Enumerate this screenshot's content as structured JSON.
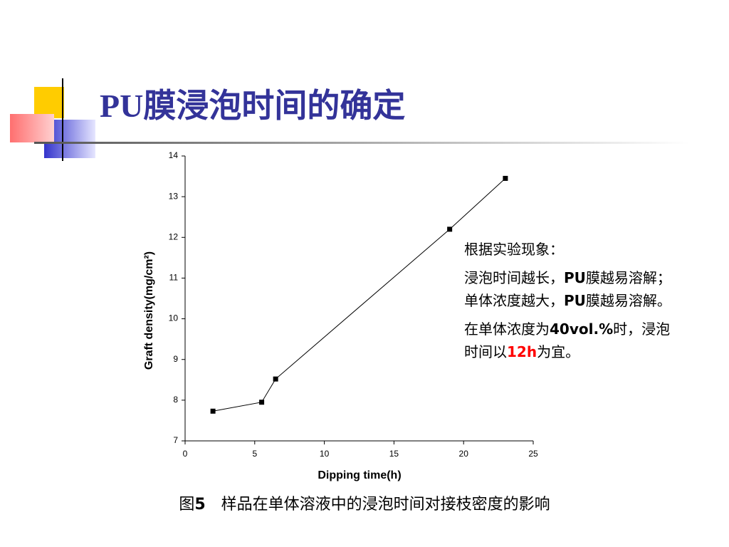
{
  "slide": {
    "title": "PU膜浸泡时间的确定"
  },
  "chart_data": {
    "type": "line",
    "x": [
      2,
      5.5,
      6.5,
      19,
      23
    ],
    "values": [
      7.73,
      7.95,
      8.52,
      12.2,
      13.45
    ],
    "color": "#000000",
    "xlabel": "Dipping time(h)",
    "ylabel": "Graft density(mg/cm²)",
    "xlim": [
      0,
      25
    ],
    "xticks": [
      0,
      5,
      10,
      15,
      20,
      25
    ],
    "ylim": [
      7,
      14
    ],
    "yticks": [
      7,
      8,
      9,
      10,
      11,
      12,
      13,
      14
    ]
  },
  "notes": [
    [
      {
        "text": "根据实验现象："
      }
    ],
    [
      {
        "text": "浸泡时间越长，"
      },
      {
        "text": "PU",
        "bold": true
      },
      {
        "text": "膜越易溶解；单体浓度越大，"
      },
      {
        "text": "PU",
        "bold": true
      },
      {
        "text": "膜越易溶解。"
      }
    ],
    [
      {
        "text": "在单体浓度为"
      },
      {
        "text": "40vol.%",
        "bold": true
      },
      {
        "text": "时，浸泡时间以"
      },
      {
        "text": "12h",
        "bold": true,
        "color": "#ff0000"
      },
      {
        "text": "为宜。"
      }
    ]
  ],
  "caption": [
    {
      "text": "图"
    },
    {
      "text": "5",
      "bold": true
    },
    {
      "text": "　样品在单体溶液中的浸泡时间对接枝密度的影响"
    }
  ]
}
